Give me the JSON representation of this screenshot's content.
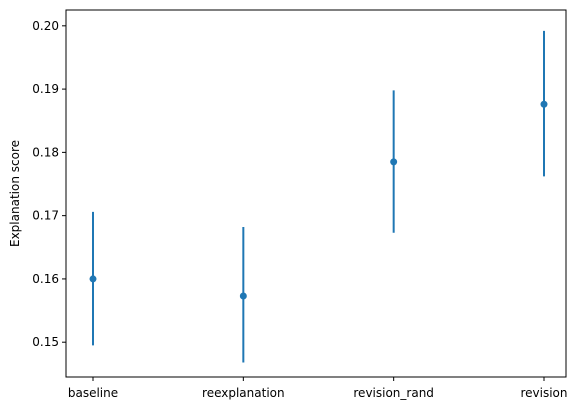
{
  "chart_data": {
    "type": "scatter",
    "title": "",
    "xlabel": "",
    "ylabel": "Explanation score",
    "categories": [
      "baseline",
      "reexplanation",
      "revision_rand",
      "revision"
    ],
    "series": [
      {
        "values": [
          0.16,
          0.1573,
          0.1785,
          0.1876
        ],
        "error_low": [
          0.1495,
          0.1468,
          0.1673,
          0.1762
        ],
        "error_high": [
          0.1706,
          0.1682,
          0.1898,
          0.1992
        ],
        "color": "#1f77b4"
      }
    ],
    "ylim": [
      0.1445,
      0.2025
    ],
    "yticks": [
      0.15,
      0.16,
      0.17,
      0.18,
      0.19,
      0.2
    ],
    "ytick_labels": [
      "0.15",
      "0.16",
      "0.17",
      "0.18",
      "0.19",
      "0.20"
    ],
    "grid": false,
    "legend": "none"
  }
}
